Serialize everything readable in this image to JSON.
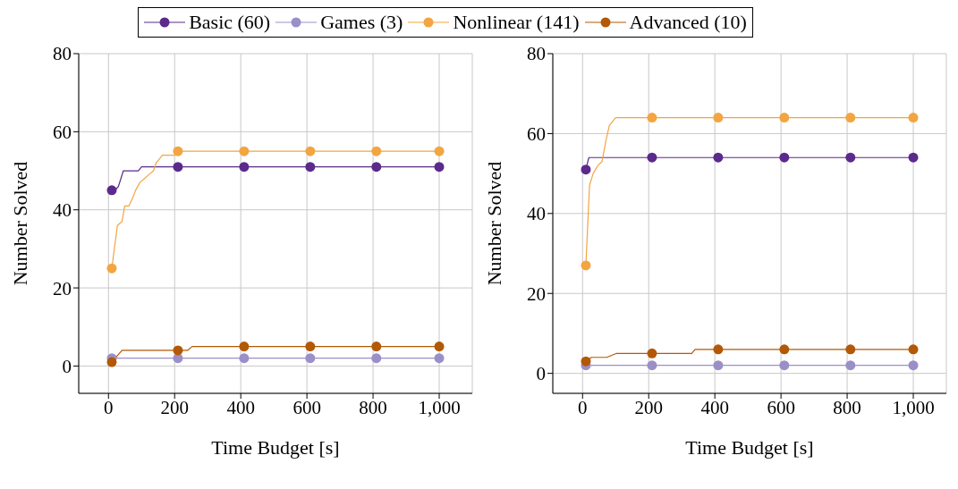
{
  "chart_data": [
    {
      "type": "line",
      "xlabel": "Time Budget [s]",
      "ylabel": "Number Solved",
      "xlim": [
        -90,
        1100
      ],
      "xticks": [
        0,
        200,
        400,
        600,
        800,
        {
          "value": 1000,
          "label": "1,000"
        }
      ],
      "ylim": [
        -7,
        80
      ],
      "yticks": [
        0,
        20,
        40,
        60,
        80
      ],
      "grid": true,
      "legend": "top",
      "marker": "circle",
      "series": [
        {
          "marker": "none",
          "color": "#5b2a8c",
          "x": [
            10,
            20,
            30,
            45,
            90,
            100,
            1000
          ],
          "values": [
            45,
            45,
            46,
            50,
            50,
            51,
            51
          ]
        },
        {
          "type": "line",
          "marker": "none",
          "color": "#9b8fc8",
          "x": [
            10,
            1000
          ],
          "values": [
            2,
            2
          ]
        },
        {
          "type": "line",
          "marker": "none",
          "color": "#f2a541",
          "x": [
            10,
            27,
            41,
            49,
            62,
            73,
            82,
            95,
            109,
            122,
            136,
            144,
            163,
            200,
            210,
            1000
          ],
          "values": [
            25,
            36,
            37,
            41,
            41,
            43,
            45,
            47,
            48,
            49,
            50,
            52,
            54,
            54,
            55,
            55
          ]
        },
        {
          "type": "line",
          "marker": "none",
          "color": "#b35806",
          "x": [
            10,
            41,
            239,
            253,
            1000
          ],
          "values": [
            1,
            4,
            4,
            5,
            5
          ]
        },
        {
          "type": "scatter",
          "name": "Basic (60)",
          "color": "#5b2a8c",
          "x": [
            10,
            210,
            410,
            610,
            810,
            1000
          ],
          "values": [
            45,
            51,
            51,
            51,
            51,
            51
          ]
        },
        {
          "type": "scatter",
          "name": "Games (3)",
          "color": "#9b8fc8",
          "x": [
            10,
            210,
            410,
            610,
            810,
            1000
          ],
          "values": [
            2,
            2,
            2,
            2,
            2,
            2
          ]
        },
        {
          "type": "scatter",
          "name": "Nonlinear (141)",
          "color": "#f2a541",
          "x": [
            10,
            210,
            410,
            610,
            810,
            1000
          ],
          "values": [
            25,
            55,
            55,
            55,
            55,
            55
          ]
        },
        {
          "type": "scatter",
          "name": "Advanced (10)",
          "color": "#b35806",
          "x": [
            10,
            210,
            410,
            610,
            810,
            1000
          ],
          "values": [
            1,
            4,
            5,
            5,
            5,
            5
          ]
        }
      ]
    },
    {
      "type": "line",
      "xlabel": "Time Budget [s]",
      "ylabel": "Number Solved",
      "xlim": [
        -90,
        1100
      ],
      "xticks": [
        0,
        200,
        400,
        600,
        800,
        {
          "value": 1000,
          "label": "1,000"
        }
      ],
      "ylim": [
        -5,
        80
      ],
      "yticks": [
        0,
        20,
        40,
        60,
        80
      ],
      "grid": true,
      "marker": "circle",
      "series": [
        {
          "marker": "none",
          "color": "#5b2a8c",
          "x": [
            10,
            19,
            1000
          ],
          "values": [
            51,
            54,
            54
          ]
        },
        {
          "type": "line",
          "marker": "none",
          "color": "#9b8fc8",
          "x": [
            10,
            1000
          ],
          "values": [
            2,
            2
          ]
        },
        {
          "type": "line",
          "marker": "none",
          "color": "#f2a541",
          "x": [
            10,
            21,
            32,
            46,
            59,
            70,
            81,
            100,
            1000
          ],
          "values": [
            27,
            47,
            50,
            52,
            53,
            58,
            62,
            64,
            64
          ]
        },
        {
          "type": "line",
          "marker": "none",
          "color": "#b35806",
          "x": [
            10,
            27,
            73,
            103,
            330,
            340,
            1000
          ],
          "values": [
            3,
            4,
            4,
            5,
            5,
            6,
            6
          ]
        },
        {
          "type": "scatter",
          "color": "#5b2a8c",
          "x": [
            10,
            210,
            410,
            610,
            810,
            1000
          ],
          "values": [
            51,
            54,
            54,
            54,
            54,
            54
          ]
        },
        {
          "type": "scatter",
          "color": "#9b8fc8",
          "x": [
            10,
            210,
            410,
            610,
            810,
            1000
          ],
          "values": [
            2,
            2,
            2,
            2,
            2,
            2
          ]
        },
        {
          "type": "scatter",
          "color": "#f2a541",
          "x": [
            10,
            210,
            410,
            610,
            810,
            1000
          ],
          "values": [
            27,
            64,
            64,
            64,
            64,
            64
          ]
        },
        {
          "type": "scatter",
          "color": "#b35806",
          "x": [
            10,
            210,
            410,
            610,
            810,
            1000
          ],
          "values": [
            3,
            5,
            6,
            6,
            6,
            6
          ]
        }
      ]
    }
  ]
}
